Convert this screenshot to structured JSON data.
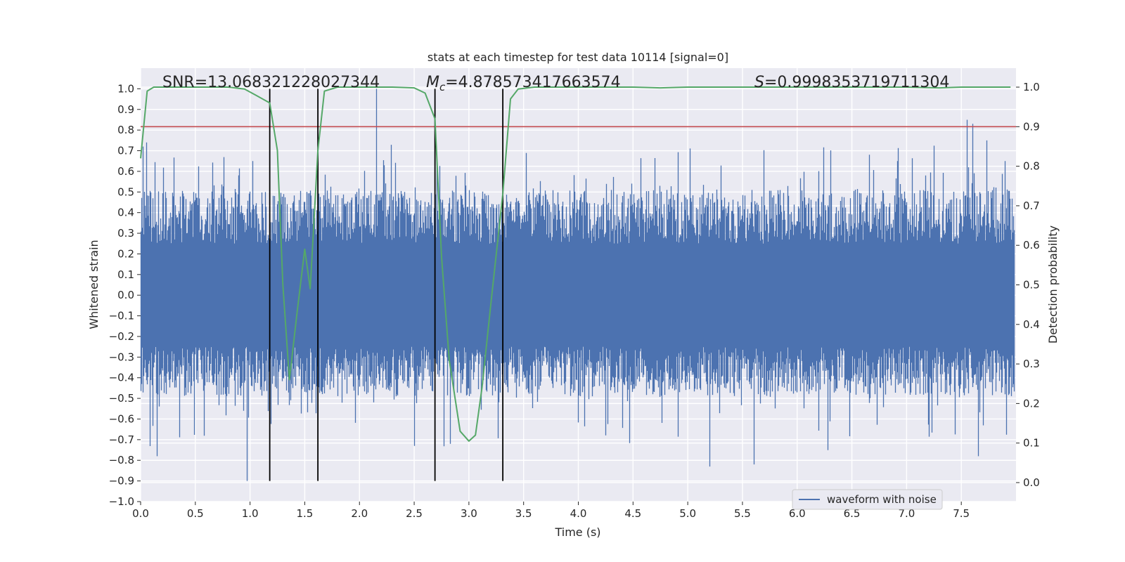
{
  "chart_data": {
    "type": "line",
    "title": "stats at each timestep for test data 10114 [signal=0]",
    "xlabel": "Time (s)",
    "ylabel_left": "Whitened strain",
    "ylabel_right": "Detection probability",
    "xlim": [
      0,
      8
    ],
    "ylim_left": [
      -1.0,
      1.1
    ],
    "ylim_right": [
      -0.048,
      1.048
    ],
    "x_ticks": [
      0.0,
      0.5,
      1.0,
      1.5,
      2.0,
      2.5,
      3.0,
      3.5,
      4.0,
      4.5,
      5.0,
      5.5,
      6.0,
      6.5,
      7.0,
      7.5
    ],
    "y_ticks_left": [
      -1.0,
      -0.9,
      -0.8,
      -0.7,
      -0.6,
      -0.5,
      -0.4,
      -0.3,
      -0.2,
      -0.1,
      0.0,
      0.1,
      0.2,
      0.3,
      0.4,
      0.5,
      0.6,
      0.7,
      0.8,
      0.9,
      1.0
    ],
    "y_ticks_right": [
      0.0,
      0.1,
      0.2,
      0.3,
      0.4,
      0.5,
      0.6,
      0.7,
      0.8,
      0.9,
      1.0
    ],
    "grid": true,
    "background": "#eaeaf2",
    "annotations": [
      {
        "text": "SNR=13.068321228027344",
        "x": 0.2
      },
      {
        "text": "=4.878573417663574",
        "prefix": "M",
        "sub": "c",
        "x": 2.6
      },
      {
        "text": "=0.9998353719711304",
        "prefix": "S",
        "x": 5.6
      }
    ],
    "legend": {
      "position": "lower-right",
      "entries": [
        {
          "label": "waveform with noise",
          "color": "#4c72b0"
        }
      ]
    },
    "threshold_line": {
      "value": 0.9,
      "axis": "right",
      "color": "#c44e52"
    },
    "vertical_lines": {
      "x": [
        1.18,
        1.62,
        2.69,
        3.31
      ],
      "y_range": [
        -0.9,
        1.0
      ],
      "color": "#000000"
    },
    "waveform": {
      "color": "#4c72b0",
      "core_lo": -0.25,
      "core_hi": 0.25,
      "spikes": [
        {
          "x": 0.02,
          "y": 0.72
        },
        {
          "x": 0.05,
          "y": 0.74
        },
        {
          "x": 0.97,
          "y": -0.9
        },
        {
          "x": 0.15,
          "y": -0.78
        },
        {
          "x": 1.02,
          "y": 0.65
        },
        {
          "x": 2.15,
          "y": 1.0
        },
        {
          "x": 2.83,
          "y": -0.72
        },
        {
          "x": 2.5,
          "y": -0.73
        },
        {
          "x": 5.2,
          "y": -0.83
        },
        {
          "x": 5.6,
          "y": -0.82
        },
        {
          "x": 7.55,
          "y": 0.85
        },
        {
          "x": 7.6,
          "y": 0.83
        },
        {
          "x": 7.65,
          "y": -0.78
        },
        {
          "x": 7.9,
          "y": 0.65
        }
      ]
    },
    "series": [
      {
        "name": "",
        "axis": "right",
        "color": "#55a868",
        "x": [
          0.0,
          0.06,
          0.12,
          0.2,
          0.4,
          0.6,
          0.8,
          0.95,
          1.05,
          1.18,
          1.25,
          1.3,
          1.36,
          1.43,
          1.5,
          1.55,
          1.62,
          1.68,
          1.8,
          2.0,
          2.3,
          2.5,
          2.6,
          2.69,
          2.75,
          2.82,
          2.92,
          3.0,
          3.06,
          3.12,
          3.2,
          3.31,
          3.38,
          3.45,
          3.6,
          4.0,
          4.5,
          4.75,
          5.0,
          5.5,
          6.0,
          6.5,
          7.0,
          7.3,
          7.5,
          7.95
        ],
        "y": [
          0.82,
          0.99,
          1.0,
          1.0,
          1.0,
          1.0,
          1.0,
          0.995,
          0.98,
          0.96,
          0.84,
          0.5,
          0.26,
          0.43,
          0.59,
          0.49,
          0.84,
          0.99,
          1.0,
          1.0,
          1.0,
          0.998,
          0.985,
          0.92,
          0.57,
          0.31,
          0.13,
          0.105,
          0.12,
          0.24,
          0.45,
          0.73,
          0.97,
          0.995,
          1.0,
          1.0,
          1.0,
          0.998,
          1.0,
          1.0,
          1.0,
          1.0,
          1.0,
          0.998,
          1.0,
          1.0
        ]
      }
    ]
  }
}
